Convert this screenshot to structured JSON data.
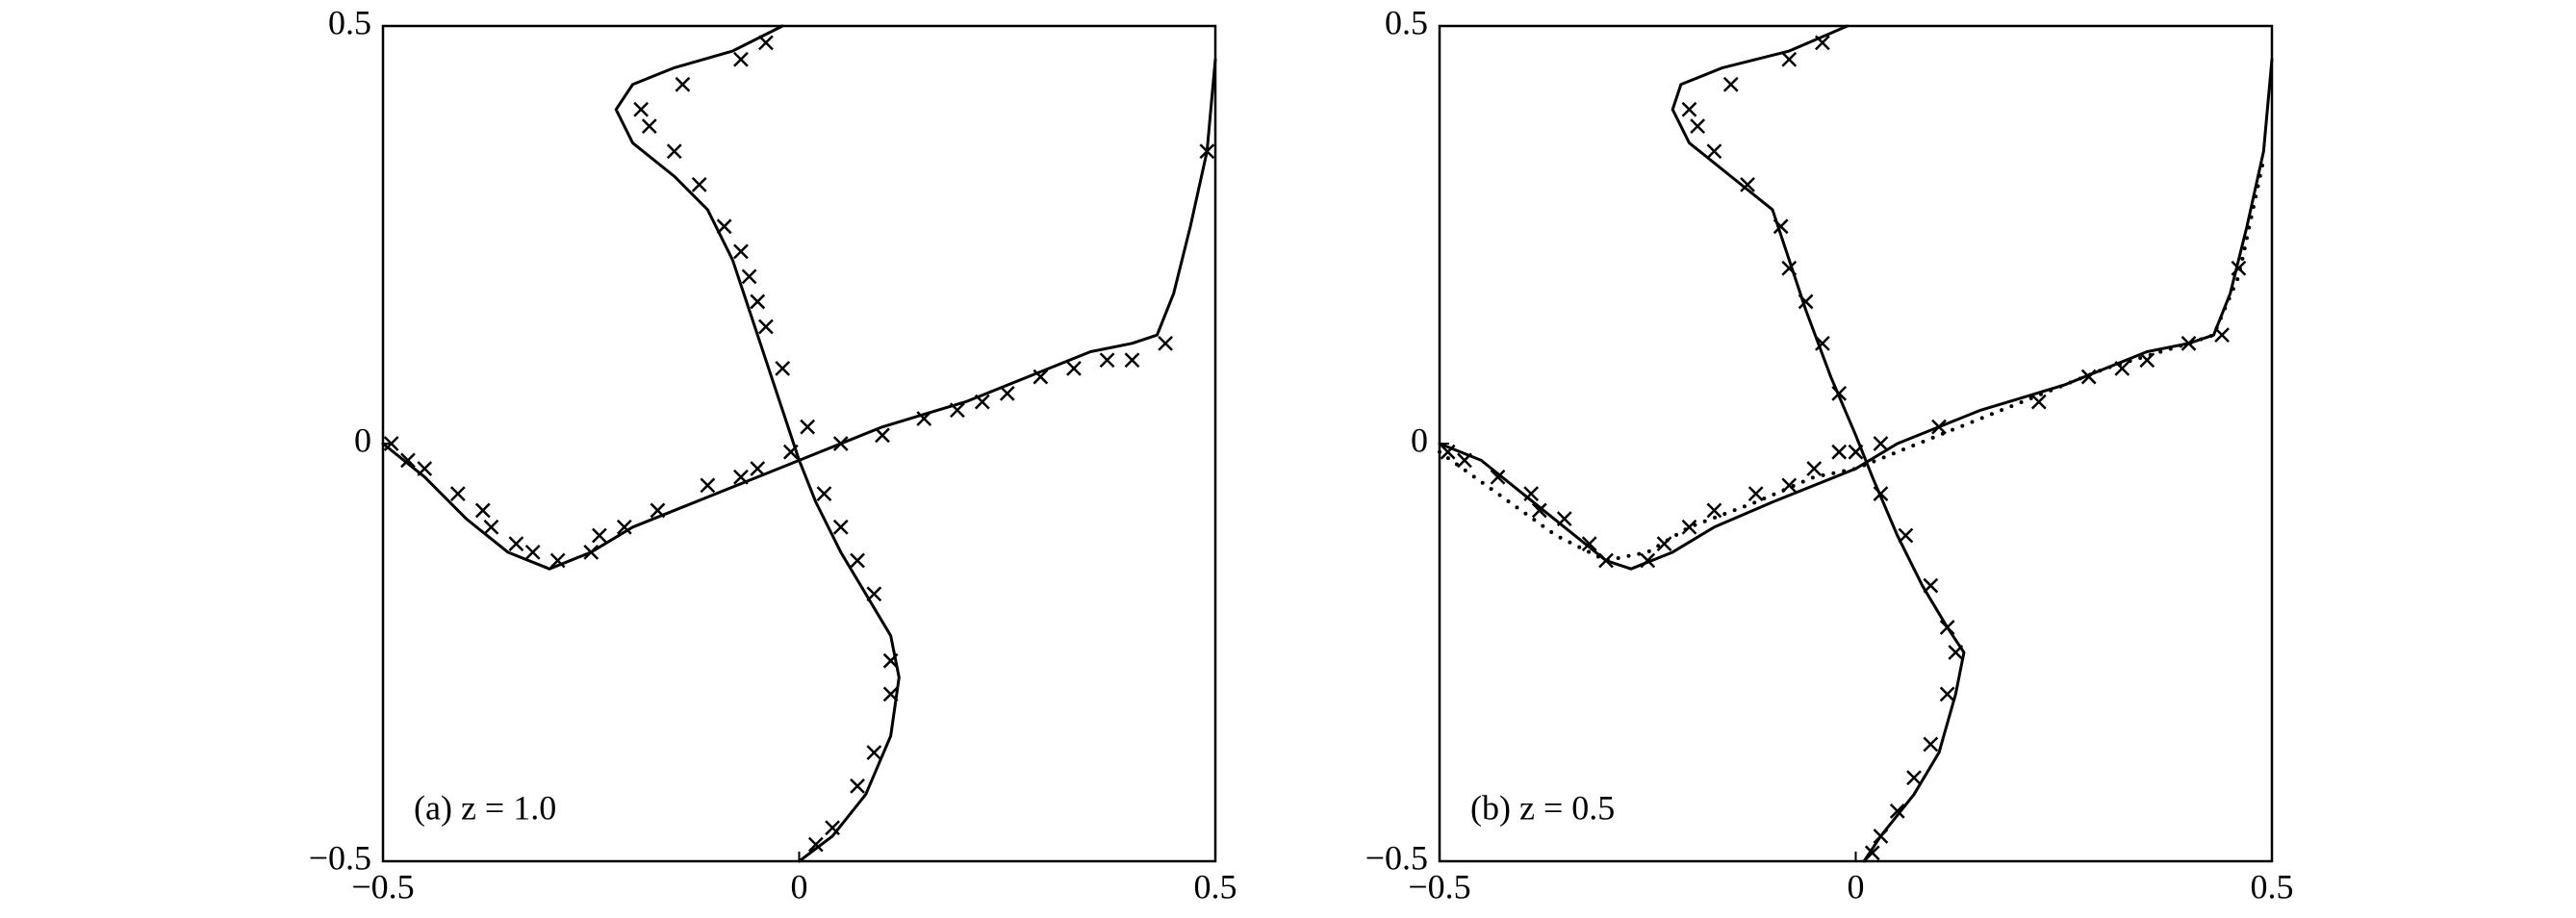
{
  "chart_data": [
    {
      "type": "scatter",
      "label": "(a) z = 1.0",
      "xlim": [
        -0.5,
        0.5
      ],
      "ylim": [
        -0.5,
        0.5
      ],
      "xticks": [
        {
          "value": -0.5,
          "label": "−0.5"
        },
        0,
        0.5
      ],
      "yticks": [
        {
          "value": -0.5,
          "label": "−0.5"
        },
        0,
        0.5
      ],
      "series": [
        {
          "marker": "line",
          "color": "#000000",
          "x": [
            -0.5,
            -0.45,
            -0.4,
            -0.35,
            -0.3,
            -0.25,
            -0.2,
            -0.15,
            -0.1,
            -0.05,
            0,
            0.05,
            0.1,
            0.15,
            0.2,
            0.25,
            0.3,
            0.35,
            0.4,
            0.43,
            0.45,
            0.47,
            0.49,
            0.5
          ],
          "values": [
            0,
            -0.04,
            -0.09,
            -0.13,
            -0.15,
            -0.13,
            -0.1,
            -0.08,
            -0.06,
            -0.04,
            -0.02,
            0,
            0.02,
            0.035,
            0.05,
            0.07,
            0.09,
            0.11,
            0.12,
            0.13,
            0.18,
            0.26,
            0.35,
            0.46
          ]
        },
        {
          "marker": "line",
          "color": "#000000",
          "x": [
            -0.02,
            -0.08,
            -0.15,
            -0.2,
            -0.22,
            -0.2,
            -0.15,
            -0.11,
            -0.08,
            -0.06,
            -0.04,
            -0.02,
            0,
            0.02,
            0.05,
            0.08,
            0.11,
            0.12,
            0.11,
            0.08,
            0.04,
            0
          ],
          "values": [
            0.5,
            0.47,
            0.45,
            0.43,
            0.4,
            0.36,
            0.32,
            0.28,
            0.22,
            0.16,
            0.1,
            0.04,
            -0.02,
            -0.07,
            -0.13,
            -0.18,
            -0.23,
            -0.28,
            -0.35,
            -0.42,
            -0.47,
            -0.5
          ]
        },
        {
          "marker": "cross",
          "color": "#000000",
          "x": [
            -0.49,
            -0.47,
            -0.45,
            -0.41,
            -0.38,
            -0.37,
            -0.34,
            -0.32,
            -0.29,
            -0.25,
            -0.24,
            -0.21,
            -0.17,
            -0.11,
            -0.07,
            -0.05,
            -0.01,
            0.05,
            0.1,
            0.15,
            0.19,
            0.22,
            0.25,
            0.29,
            0.33,
            0.37,
            0.4,
            0.44,
            0.49,
            -0.04,
            -0.07,
            -0.14,
            -0.19,
            -0.18,
            -0.15,
            -0.12,
            -0.09,
            -0.07,
            -0.06,
            -0.05,
            -0.04,
            -0.02,
            0.01,
            0.03,
            0.05,
            0.07,
            0.09,
            0.11,
            0.11,
            0.09,
            0.07,
            0.04,
            0.02
          ],
          "values": [
            0,
            -0.02,
            -0.03,
            -0.06,
            -0.08,
            -0.1,
            -0.12,
            -0.13,
            -0.14,
            -0.13,
            -0.11,
            -0.1,
            -0.08,
            -0.05,
            -0.04,
            -0.03,
            -0.01,
            0,
            0.01,
            0.03,
            0.04,
            0.05,
            0.06,
            0.08,
            0.09,
            0.1,
            0.1,
            0.12,
            0.35,
            0.48,
            0.46,
            0.43,
            0.4,
            0.38,
            0.35,
            0.31,
            0.26,
            0.23,
            0.2,
            0.17,
            0.14,
            0.09,
            0.02,
            -0.06,
            -0.1,
            -0.14,
            -0.18,
            -0.26,
            -0.3,
            -0.37,
            -0.41,
            -0.46,
            -0.48
          ]
        }
      ]
    },
    {
      "type": "scatter",
      "label": "(b) z = 0.5",
      "xlim": [
        -0.5,
        0.5
      ],
      "ylim": [
        -0.5,
        0.5
      ],
      "xticks": [
        {
          "value": -0.5,
          "label": "−0.5"
        },
        0,
        0.5
      ],
      "yticks": [
        {
          "value": -0.5,
          "label": "−0.5"
        },
        0,
        0.5
      ],
      "series": [
        {
          "marker": "line",
          "color": "#000000",
          "x": [
            -0.5,
            -0.45,
            -0.4,
            -0.35,
            -0.3,
            -0.27,
            -0.22,
            -0.17,
            -0.1,
            -0.05,
            0,
            0.05,
            0.1,
            0.15,
            0.2,
            0.25,
            0.3,
            0.35,
            0.4,
            0.43,
            0.45,
            0.47,
            0.49,
            0.5
          ],
          "values": [
            0,
            -0.02,
            -0.06,
            -0.1,
            -0.14,
            -0.15,
            -0.13,
            -0.1,
            -0.07,
            -0.05,
            -0.03,
            0,
            0.02,
            0.04,
            0.055,
            0.07,
            0.09,
            0.11,
            0.12,
            0.13,
            0.18,
            0.26,
            0.35,
            0.46
          ]
        },
        {
          "marker": "line",
          "color": "#000000",
          "x": [
            -0.01,
            -0.08,
            -0.16,
            -0.21,
            -0.22,
            -0.2,
            -0.15,
            -0.1,
            -0.08,
            -0.06,
            -0.03,
            0,
            0.02,
            0.05,
            0.08,
            0.11,
            0.13,
            0.12,
            0.1,
            0.07,
            0.03,
            0.01
          ],
          "values": [
            0.5,
            0.47,
            0.45,
            0.43,
            0.4,
            0.36,
            0.32,
            0.28,
            0.22,
            0.16,
            0.08,
            0.01,
            -0.04,
            -0.11,
            -0.17,
            -0.22,
            -0.25,
            -0.3,
            -0.37,
            -0.42,
            -0.47,
            -0.5
          ]
        },
        {
          "marker": "dots",
          "color": "#000000",
          "x": [
            -0.5,
            -0.43,
            -0.36,
            -0.3,
            -0.25,
            -0.2,
            -0.12,
            -0.05,
            0,
            0.1,
            0.2,
            0.3,
            0.4,
            0.43,
            0.46,
            0.49
          ],
          "values": [
            -0.01,
            -0.06,
            -0.11,
            -0.14,
            -0.13,
            -0.1,
            -0.07,
            -0.04,
            -0.03,
            0.01,
            0.05,
            0.09,
            0.12,
            0.13,
            0.2,
            0.34
          ]
        },
        {
          "marker": "cross",
          "color": "#000000",
          "x": [
            -0.49,
            -0.47,
            -0.43,
            -0.39,
            -0.38,
            -0.35,
            -0.32,
            -0.3,
            -0.25,
            -0.23,
            -0.2,
            -0.17,
            -0.12,
            -0.08,
            -0.05,
            -0.02,
            0.03,
            0.1,
            0.22,
            0.28,
            0.32,
            0.35,
            0.4,
            0.44,
            0.46,
            -0.04,
            -0.08,
            -0.15,
            -0.2,
            -0.19,
            -0.17,
            -0.13,
            -0.09,
            -0.08,
            -0.06,
            -0.04,
            -0.02,
            0,
            0.03,
            0.06,
            0.09,
            0.11,
            0.12,
            0.11,
            0.09,
            0.07,
            0.05,
            0.03,
            0.02
          ],
          "values": [
            -0.01,
            -0.02,
            -0.04,
            -0.06,
            -0.08,
            -0.09,
            -0.12,
            -0.14,
            -0.14,
            -0.12,
            -0.1,
            -0.08,
            -0.06,
            -0.05,
            -0.03,
            -0.01,
            0,
            0.02,
            0.05,
            0.08,
            0.09,
            0.1,
            0.12,
            0.13,
            0.21,
            0.48,
            0.46,
            0.43,
            0.4,
            0.38,
            0.35,
            0.31,
            0.26,
            0.21,
            0.17,
            0.12,
            0.06,
            -0.01,
            -0.06,
            -0.11,
            -0.17,
            -0.22,
            -0.25,
            -0.3,
            -0.36,
            -0.4,
            -0.44,
            -0.47,
            -0.49
          ]
        }
      ]
    }
  ]
}
